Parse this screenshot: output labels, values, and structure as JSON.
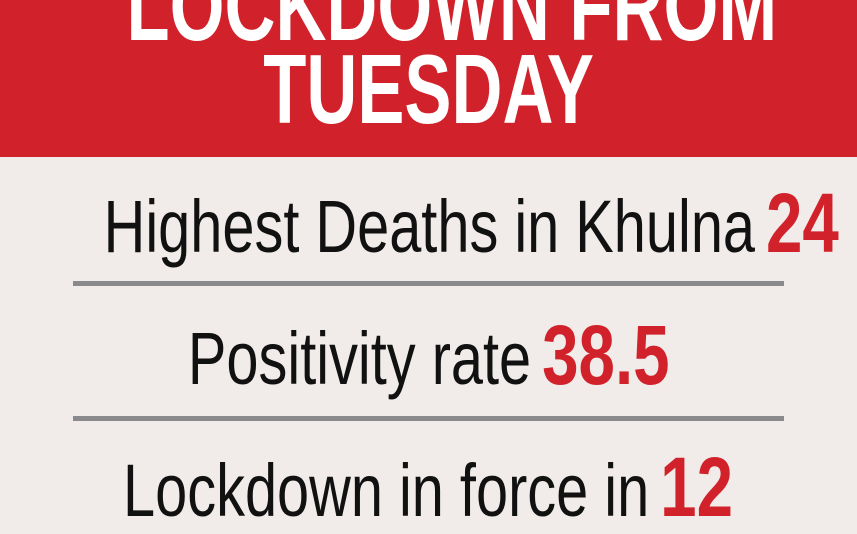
{
  "banner": {
    "line1": "LOCKDOWN FROM",
    "line2": "TUESDAY",
    "color": "#d1222b"
  },
  "stats": [
    {
      "label": "Highest Deaths in Khulna",
      "value": "24"
    },
    {
      "label": "Positivity rate",
      "value": "38.5"
    },
    {
      "label": "Lockdown in force in",
      "value": "12"
    }
  ],
  "colors": {
    "background": "#f1ece9",
    "accent": "#d1222b",
    "divider": "#8a8a8d"
  }
}
